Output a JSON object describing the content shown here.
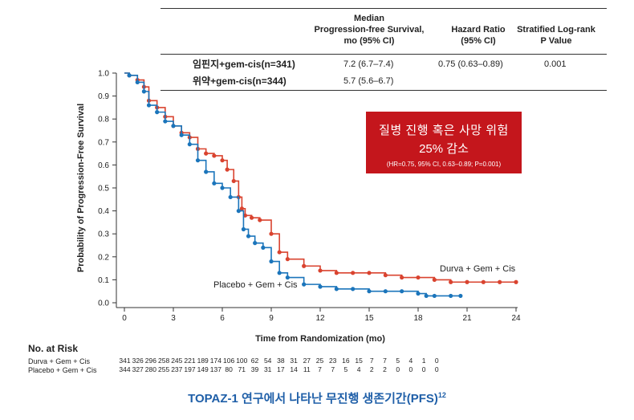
{
  "summary_table": {
    "headers": {
      "median": [
        "Median",
        "Progression-free Survival,",
        "mo (95% CI)"
      ],
      "hr": [
        "Hazard Ratio",
        "(95% CI)"
      ],
      "logrank": [
        "Stratified Log-rank",
        "P Value"
      ]
    },
    "rows": [
      {
        "arm": "임핀지+gem-cis(n=341)",
        "median": "7.2 (6.7–7.4)",
        "hr": "0.75 (0.63–0.89)",
        "p": "0.001"
      },
      {
        "arm": "위약+gem-cis(n=344)",
        "median": "5.7 (5.6–6.7)",
        "hr": "",
        "p": ""
      }
    ]
  },
  "callout": {
    "line1": "질병 진행 혹은 사망 위험",
    "line2": "25% 감소",
    "line3": "(HR=0.75, 95% CI, 0.63–0.89; P=0.001)"
  },
  "risk_table": {
    "title": "No. at Risk",
    "rows": [
      {
        "label": "Durva + Gem + Cis",
        "values": [
          "341",
          "326",
          "296",
          "258",
          "245",
          "221",
          "189",
          "174",
          "106",
          "100",
          "62",
          "54",
          "38",
          "31",
          "27",
          "25",
          "23",
          "16",
          "15",
          "7",
          "7",
          "5",
          "4",
          "1",
          "0"
        ]
      },
      {
        "label": "Placebo + Gem + Cis",
        "values": [
          "344",
          "327",
          "280",
          "255",
          "237",
          "197",
          "149",
          "137",
          "80",
          "71",
          "39",
          "31",
          "17",
          "14",
          "11",
          "7",
          "7",
          "5",
          "4",
          "2",
          "2",
          "0",
          "0",
          "0",
          "0"
        ]
      }
    ]
  },
  "caption": {
    "text": "TOPAZ-1 연구에서 나타난 무진행 생존기간(PFS)",
    "sup": "12"
  },
  "chart_data": {
    "type": "line",
    "xlabel": "Time from Randomization (mo)",
    "ylabel": "Probability of Progression-Free Survival",
    "xlim": [
      0,
      24
    ],
    "ylim": [
      0,
      1.0
    ],
    "xticks": [
      0,
      3,
      6,
      9,
      12,
      15,
      18,
      21,
      24
    ],
    "yticks": [
      0.0,
      0.1,
      0.2,
      0.3,
      0.4,
      0.5,
      0.6,
      0.7,
      0.8,
      0.9,
      1.0
    ],
    "series": [
      {
        "name": "Durva + Gem + Cis",
        "color": "#d9432f",
        "x": [
          0,
          0.3,
          0.8,
          1.2,
          1.5,
          2.0,
          2.5,
          3.0,
          3.5,
          4.0,
          4.5,
          5.0,
          5.5,
          6.0,
          6.3,
          6.7,
          7.0,
          7.2,
          7.4,
          7.8,
          8.3,
          9.0,
          9.5,
          10.0,
          11.0,
          12.0,
          13.0,
          14.0,
          15.0,
          16.0,
          17.0,
          18.0,
          19.0,
          20.0,
          21.0,
          22.0,
          23.0,
          24.0
        ],
        "y": [
          1.0,
          0.99,
          0.97,
          0.94,
          0.88,
          0.85,
          0.81,
          0.77,
          0.74,
          0.72,
          0.67,
          0.65,
          0.64,
          0.62,
          0.58,
          0.53,
          0.46,
          0.41,
          0.38,
          0.37,
          0.36,
          0.3,
          0.22,
          0.19,
          0.16,
          0.14,
          0.13,
          0.13,
          0.13,
          0.12,
          0.11,
          0.11,
          0.1,
          0.09,
          0.09,
          0.09,
          0.09,
          0.09
        ]
      },
      {
        "name": "Placebo + Gem + Cis",
        "color": "#1b75bb",
        "x": [
          0,
          0.3,
          0.8,
          1.2,
          1.5,
          2.0,
          2.5,
          3.0,
          3.5,
          4.0,
          4.5,
          5.0,
          5.5,
          6.0,
          6.5,
          7.0,
          7.3,
          7.6,
          8.0,
          8.5,
          9.0,
          9.5,
          10.0,
          11.0,
          12.0,
          13.0,
          14.0,
          15.0,
          16.0,
          17.0,
          18.0,
          18.5,
          19.0,
          20.0,
          20.6
        ],
        "y": [
          1.0,
          0.99,
          0.96,
          0.92,
          0.86,
          0.83,
          0.79,
          0.77,
          0.73,
          0.69,
          0.62,
          0.57,
          0.52,
          0.5,
          0.46,
          0.4,
          0.32,
          0.29,
          0.26,
          0.24,
          0.18,
          0.13,
          0.11,
          0.08,
          0.07,
          0.06,
          0.06,
          0.05,
          0.05,
          0.05,
          0.04,
          0.03,
          0.03,
          0.03,
          0.03
        ]
      }
    ],
    "annotations": [
      {
        "text": "Durva + Gem + Cis",
        "series": 0
      },
      {
        "text": "Placebo + Gem + Cis",
        "series": 1
      }
    ],
    "grid": false
  }
}
